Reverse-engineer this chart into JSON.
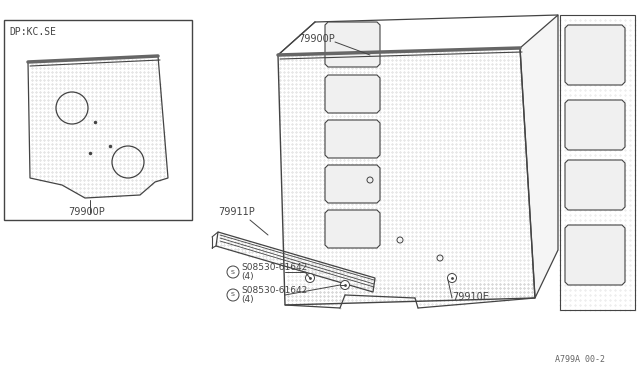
{
  "bg_color": "#ffffff",
  "line_color": "#444444",
  "dot_color": "#bbbbbb",
  "page_code": "A799A 00-2",
  "box_label": "DP:KC.SE",
  "label_79900P": "79900P",
  "label_79911P": "79911P",
  "label_79910E": "79910E",
  "label_screw1": "S08530-61642",
  "label_screw1b": "(4)",
  "label_screw2": "S08530-61642",
  "label_screw2b": "(4)"
}
